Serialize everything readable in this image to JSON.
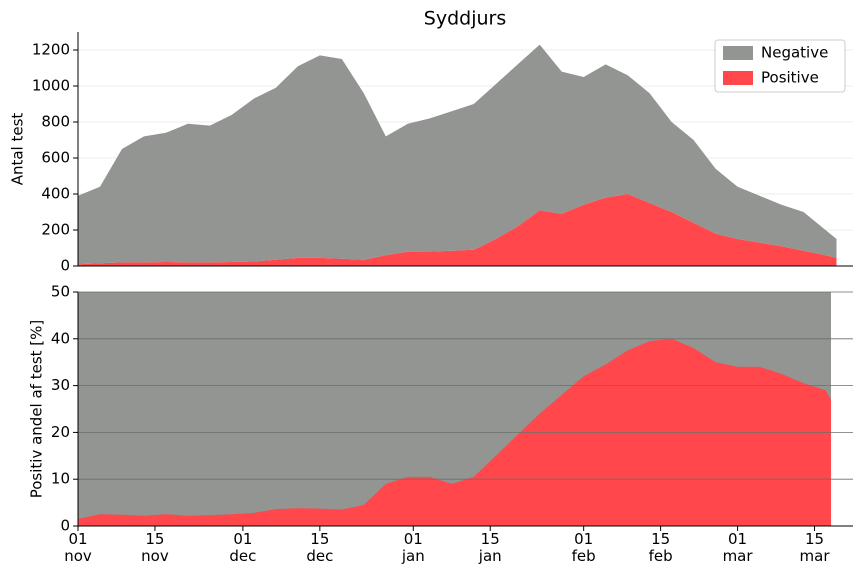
{
  "chart_data": [
    {
      "type": "stacked-area",
      "title": "Syddjurs",
      "ylabel": "Antal test",
      "x": [
        "11-01",
        "11-05",
        "11-09",
        "11-13",
        "11-17",
        "11-21",
        "11-25",
        "11-29",
        "12-03",
        "12-07",
        "12-11",
        "12-15",
        "12-19",
        "12-23",
        "12-27",
        "12-31",
        "01-04",
        "01-08",
        "01-12",
        "01-16",
        "01-20",
        "01-24",
        "01-28",
        "02-01",
        "02-05",
        "02-09",
        "02-13",
        "02-17",
        "02-21",
        "02-25",
        "03-01",
        "03-05",
        "03-09",
        "03-13",
        "03-17",
        "03-19"
      ],
      "series": [
        {
          "name": "Negative",
          "color": "#929591",
          "values": [
            380,
            425,
            630,
            700,
            718,
            770,
            760,
            818,
            905,
            955,
            1065,
            1125,
            1110,
            925,
            660,
            710,
            740,
            775,
            810,
            860,
            900,
            920,
            790,
            710,
            740,
            660,
            610,
            500,
            460,
            360,
            290,
            260,
            230,
            215,
            140,
            105
          ]
        },
        {
          "name": "Positive",
          "color": "#ff474c",
          "values": [
            10,
            15,
            20,
            20,
            22,
            20,
            20,
            22,
            25,
            35,
            45,
            45,
            40,
            35,
            60,
            80,
            80,
            85,
            90,
            150,
            220,
            310,
            290,
            340,
            380,
            400,
            350,
            300,
            240,
            180,
            150,
            130,
            110,
            85,
            60,
            45
          ]
        }
      ],
      "xlim": [
        "11-01",
        "03-22"
      ],
      "ylim": [
        0,
        1300
      ],
      "yticks": [
        0,
        200,
        400,
        600,
        800,
        1000,
        1200
      ],
      "grid": true,
      "legend": "upper right"
    },
    {
      "type": "area",
      "ylabel": "Positiv andel af test [%]",
      "color": "#ff474c",
      "background": "#929591",
      "x": [
        "11-01",
        "11-05",
        "11-09",
        "11-13",
        "11-17",
        "11-21",
        "11-25",
        "11-29",
        "12-03",
        "12-07",
        "12-11",
        "12-15",
        "12-19",
        "12-23",
        "12-27",
        "12-31",
        "01-04",
        "01-08",
        "01-12",
        "01-16",
        "01-20",
        "01-24",
        "01-28",
        "02-01",
        "02-05",
        "02-09",
        "02-13",
        "02-17",
        "02-21",
        "02-25",
        "03-01",
        "03-05",
        "03-09",
        "03-13",
        "03-17",
        "03-18"
      ],
      "values": [
        1.5,
        2.5,
        2.4,
        2.2,
        2.5,
        2.2,
        2.3,
        2.5,
        2.8,
        3.6,
        3.8,
        3.7,
        3.5,
        4.5,
        9,
        10.5,
        10.5,
        9,
        10.5,
        15,
        19.5,
        24,
        28,
        32,
        34.5,
        37.5,
        39.5,
        40,
        38,
        35,
        34,
        34,
        32.5,
        30.5,
        29,
        27
      ],
      "xlim": [
        "11-01",
        "03-22"
      ],
      "ylim": [
        0,
        50
      ],
      "yticks": [
        0,
        10,
        20,
        30,
        40,
        50
      ],
      "grid": true,
      "xticks": [
        {
          "value": "11-01",
          "label": "01 nov"
        },
        {
          "value": "11-15",
          "label": "15 nov"
        },
        {
          "value": "12-01",
          "label": "01 dec"
        },
        {
          "value": "12-15",
          "label": "15 dec"
        },
        {
          "value": "01-01",
          "label": "01 jan"
        },
        {
          "value": "01-15",
          "label": "15 jan"
        },
        {
          "value": "02-01",
          "label": "01 feb"
        },
        {
          "value": "02-15",
          "label": "15 feb"
        },
        {
          "value": "03-01",
          "label": "01 mar"
        },
        {
          "value": "03-15",
          "label": "15 mar"
        }
      ]
    }
  ]
}
